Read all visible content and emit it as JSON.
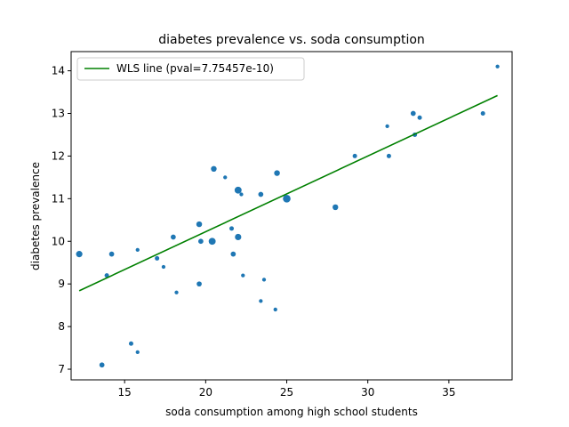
{
  "chart_data": {
    "type": "scatter",
    "title": "diabetes prevalence vs. soda consumption",
    "xlabel": "soda consumption among high school students",
    "ylabel": "diabetes prevalence",
    "xlim": [
      11.7,
      38.9
    ],
    "ylim": [
      6.75,
      14.45
    ],
    "xticks": [
      15,
      20,
      25,
      30,
      35
    ],
    "yticks": [
      7,
      8,
      9,
      10,
      11,
      12,
      13,
      14
    ],
    "grid": false,
    "legend": {
      "placement": "top-left",
      "entries": [
        "WLS line (pval=7.75457e-10)"
      ]
    },
    "colors": {
      "points": "#1f77b4",
      "line": "#008000"
    },
    "points": [
      {
        "x": 12.2,
        "y": 9.7,
        "size": 5
      },
      {
        "x": 13.6,
        "y": 7.1,
        "size": 4
      },
      {
        "x": 13.9,
        "y": 9.2,
        "size": 3.5
      },
      {
        "x": 14.2,
        "y": 9.7,
        "size": 4
      },
      {
        "x": 15.4,
        "y": 7.6,
        "size": 3.5
      },
      {
        "x": 15.8,
        "y": 9.8,
        "size": 3
      },
      {
        "x": 15.8,
        "y": 7.4,
        "size": 3
      },
      {
        "x": 17.0,
        "y": 9.6,
        "size": 3.5
      },
      {
        "x": 17.4,
        "y": 9.4,
        "size": 3
      },
      {
        "x": 18.0,
        "y": 10.1,
        "size": 4
      },
      {
        "x": 18.2,
        "y": 8.8,
        "size": 3
      },
      {
        "x": 19.6,
        "y": 10.4,
        "size": 4.5
      },
      {
        "x": 19.6,
        "y": 9.0,
        "size": 4
      },
      {
        "x": 19.7,
        "y": 10.0,
        "size": 4
      },
      {
        "x": 20.4,
        "y": 10.0,
        "size": 5.5
      },
      {
        "x": 20.5,
        "y": 11.7,
        "size": 4.5
      },
      {
        "x": 21.2,
        "y": 11.5,
        "size": 3
      },
      {
        "x": 21.6,
        "y": 10.3,
        "size": 3.5
      },
      {
        "x": 21.7,
        "y": 9.7,
        "size": 4
      },
      {
        "x": 22.0,
        "y": 11.2,
        "size": 5.5
      },
      {
        "x": 22.0,
        "y": 10.1,
        "size": 5
      },
      {
        "x": 22.2,
        "y": 11.1,
        "size": 3
      },
      {
        "x": 22.3,
        "y": 9.2,
        "size": 3
      },
      {
        "x": 23.4,
        "y": 11.1,
        "size": 4
      },
      {
        "x": 23.4,
        "y": 8.6,
        "size": 3
      },
      {
        "x": 23.6,
        "y": 9.1,
        "size": 3
      },
      {
        "x": 24.3,
        "y": 8.4,
        "size": 3
      },
      {
        "x": 24.4,
        "y": 11.6,
        "size": 4.5
      },
      {
        "x": 25.0,
        "y": 11.0,
        "size": 6
      },
      {
        "x": 28.0,
        "y": 10.8,
        "size": 4.5
      },
      {
        "x": 29.2,
        "y": 12.0,
        "size": 3.5
      },
      {
        "x": 31.2,
        "y": 12.7,
        "size": 3
      },
      {
        "x": 31.3,
        "y": 12.0,
        "size": 3.5
      },
      {
        "x": 32.8,
        "y": 13.0,
        "size": 4
      },
      {
        "x": 32.9,
        "y": 12.5,
        "size": 3.5
      },
      {
        "x": 33.2,
        "y": 12.9,
        "size": 3.5
      },
      {
        "x": 37.1,
        "y": 13.0,
        "size": 3.5
      },
      {
        "x": 38.0,
        "y": 14.1,
        "size": 3
      }
    ],
    "series": [
      {
        "name": "WLS line (pval=7.75457e-10)",
        "type": "line",
        "x": [
          12.2,
          38.0
        ],
        "y": [
          8.84,
          13.42
        ]
      }
    ]
  }
}
